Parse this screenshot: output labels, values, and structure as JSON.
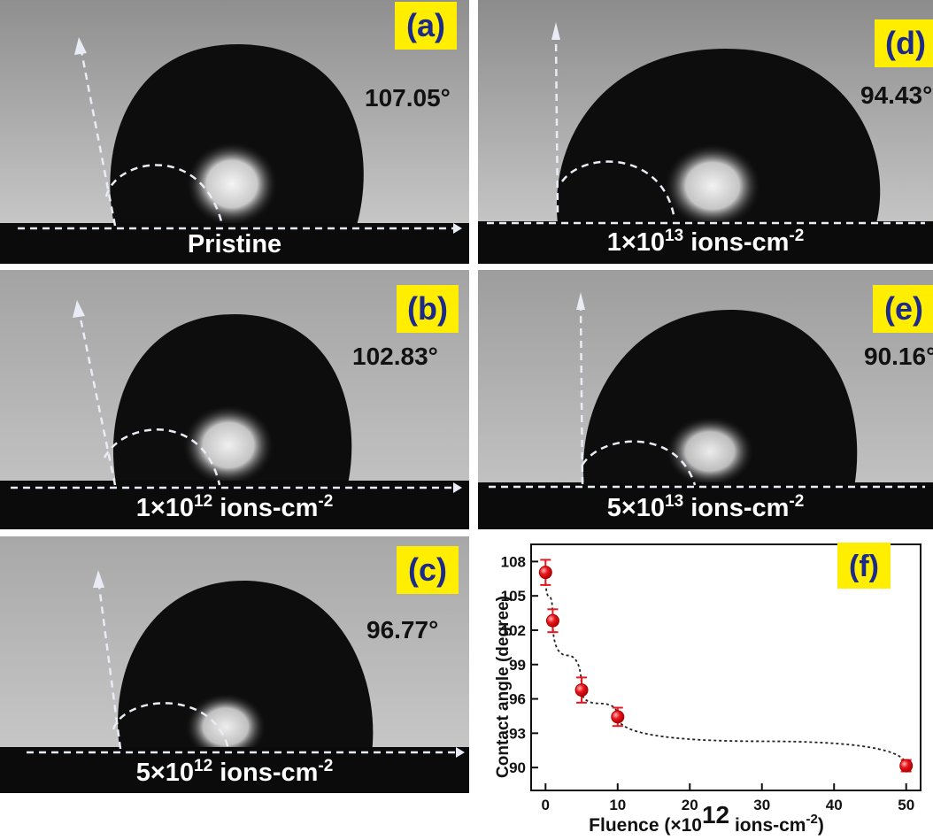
{
  "panels": {
    "a": {
      "tag": "(a)",
      "angle": "107.05°",
      "caption": "Pristine"
    },
    "b": {
      "tag": "(b)",
      "angle": "102.83°",
      "cap_pre": "1×10",
      "cap_exp": "12",
      "cap_mid": " ions-cm",
      "cap_unit_exp": "-2"
    },
    "c": {
      "tag": "(c)",
      "angle": "96.77°",
      "cap_pre": "5×10",
      "cap_exp": "12",
      "cap_mid": " ions-cm",
      "cap_unit_exp": "-2"
    },
    "d": {
      "tag": "(d)",
      "angle": "94.43°",
      "cap_pre": "1×10",
      "cap_exp": "13",
      "cap_mid": " ions-cm",
      "cap_unit_exp": "-2"
    },
    "e": {
      "tag": "(e)",
      "angle": "90.16°",
      "cap_pre": "5×10",
      "cap_exp": "13",
      "cap_mid": " ions-cm",
      "cap_unit_exp": "-2"
    }
  },
  "chart_tag": "(f)",
  "chart_data": {
    "type": "scatter",
    "xlabel_pre": "Fluence (×10",
    "xlabel_exp": "12",
    "xlabel_mid": " ions-cm",
    "xlabel_unit_exp": "-2",
    "xlabel_post": ")",
    "ylabel": "Contact angle (degree)",
    "x": [
      0,
      1,
      5,
      10,
      50
    ],
    "y": [
      107.05,
      102.83,
      96.77,
      94.43,
      90.16
    ],
    "yerr": [
      1.1,
      1.0,
      1.1,
      0.8,
      0.5
    ],
    "xlim": [
      -2,
      52
    ],
    "ylim": [
      88,
      109.5
    ],
    "xticks": [
      0,
      10,
      20,
      30,
      40,
      50
    ],
    "yticks": [
      90,
      93,
      96,
      99,
      102,
      105,
      108
    ],
    "marker_color": "#e8161e",
    "trend_line": "dotted"
  }
}
